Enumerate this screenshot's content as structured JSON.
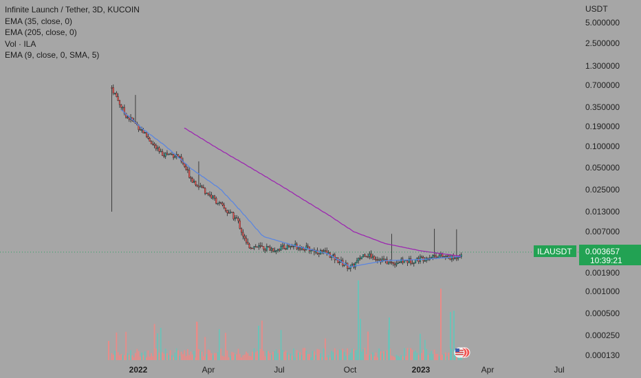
{
  "legend": {
    "title": "Infinite Launch / Tether, 3D, KUCOIN",
    "ema35": "EMA (35, close, 0)",
    "ema205": "EMA (205, close, 0)",
    "vol": "Vol · ILA",
    "ema9": "EMA (9, close, 0, SMA, 5)"
  },
  "price_axis": {
    "currency": "USDT",
    "ticks": [
      "5.000000",
      "2.500000",
      "1.300000",
      "0.700000",
      "0.350000",
      "0.190000",
      "0.100000",
      "0.050000",
      "0.025000",
      "0.013000",
      "0.007000",
      "0.001900",
      "0.001000",
      "0.000500",
      "0.000250",
      "0.000130"
    ]
  },
  "last_price": {
    "symbol": "ILAUSDT",
    "price": "0.003657",
    "countdown": "10:39:21"
  },
  "colors": {
    "background": "#a6a6a6",
    "up": "#26a69a",
    "down": "#ef5350",
    "ema35": "#5b86e0",
    "ema205": "#9c27b0",
    "price_tag": "#22a253",
    "last_price_line": "#2e9e62"
  },
  "chart_data": {
    "type": "candlestick",
    "title": "Infinite Launch / Tether, 3D, KUCOIN",
    "y_scale": "log",
    "ylim": [
      0.00011,
      9.0
    ],
    "x_ticks": [
      "2022",
      "Apr",
      "Jul",
      "Oct",
      "2023",
      "Apr",
      "Jul"
    ],
    "x_ticks_bold": [
      "2022",
      "2023"
    ],
    "last_price": 0.003657,
    "price_keypoints": [
      {
        "date": "2021-11-28",
        "close": 0.65
      },
      {
        "date": "2021-12-15",
        "close": 0.28
      },
      {
        "date": "2022-01-05",
        "close": 0.17
      },
      {
        "date": "2022-01-28",
        "close": 0.08
      },
      {
        "date": "2022-02-20",
        "close": 0.075
      },
      {
        "date": "2022-03-10",
        "close": 0.035
      },
      {
        "date": "2022-04-05",
        "close": 0.02
      },
      {
        "date": "2022-05-08",
        "close": 0.01
      },
      {
        "date": "2022-05-20",
        "close": 0.0045
      },
      {
        "date": "2022-06-25",
        "close": 0.004
      },
      {
        "date": "2022-07-20",
        "close": 0.0045
      },
      {
        "date": "2022-09-01",
        "close": 0.0035
      },
      {
        "date": "2022-10-01",
        "close": 0.0022
      },
      {
        "date": "2022-10-20",
        "close": 0.0035
      },
      {
        "date": "2022-11-20",
        "close": 0.0026
      },
      {
        "date": "2022-12-20",
        "close": 0.0028
      },
      {
        "date": "2023-01-20",
        "close": 0.0033
      },
      {
        "date": "2023-02-15",
        "close": 0.003
      },
      {
        "date": "2023-02-25",
        "close": 0.003657
      }
    ],
    "ema35_keypoints": [
      {
        "date": "2021-12-10",
        "value": 0.32
      },
      {
        "date": "2022-01-05",
        "value": 0.18
      },
      {
        "date": "2022-02-05",
        "value": 0.1
      },
      {
        "date": "2022-03-10",
        "value": 0.048
      },
      {
        "date": "2022-04-15",
        "value": 0.026
      },
      {
        "date": "2022-05-10",
        "value": 0.014
      },
      {
        "date": "2022-06-10",
        "value": 0.006
      },
      {
        "date": "2022-07-20",
        "value": 0.0045
      },
      {
        "date": "2022-09-01",
        "value": 0.0035
      },
      {
        "date": "2022-10-01",
        "value": 0.0023
      },
      {
        "date": "2022-11-15",
        "value": 0.0028
      },
      {
        "date": "2023-01-01",
        "value": 0.0029
      },
      {
        "date": "2023-02-25",
        "value": 0.0032
      }
    ],
    "ema205_keypoints": [
      {
        "date": "2022-03-01",
        "value": 0.18
      },
      {
        "date": "2022-04-15",
        "value": 0.09
      },
      {
        "date": "2022-06-01",
        "value": 0.045
      },
      {
        "date": "2022-07-20",
        "value": 0.022
      },
      {
        "date": "2022-09-01",
        "value": 0.012
      },
      {
        "date": "2022-10-05",
        "value": 0.007
      },
      {
        "date": "2022-11-15",
        "value": 0.0048
      },
      {
        "date": "2023-01-01",
        "value": 0.0038
      },
      {
        "date": "2023-02-25",
        "value": 0.0032
      }
    ]
  }
}
